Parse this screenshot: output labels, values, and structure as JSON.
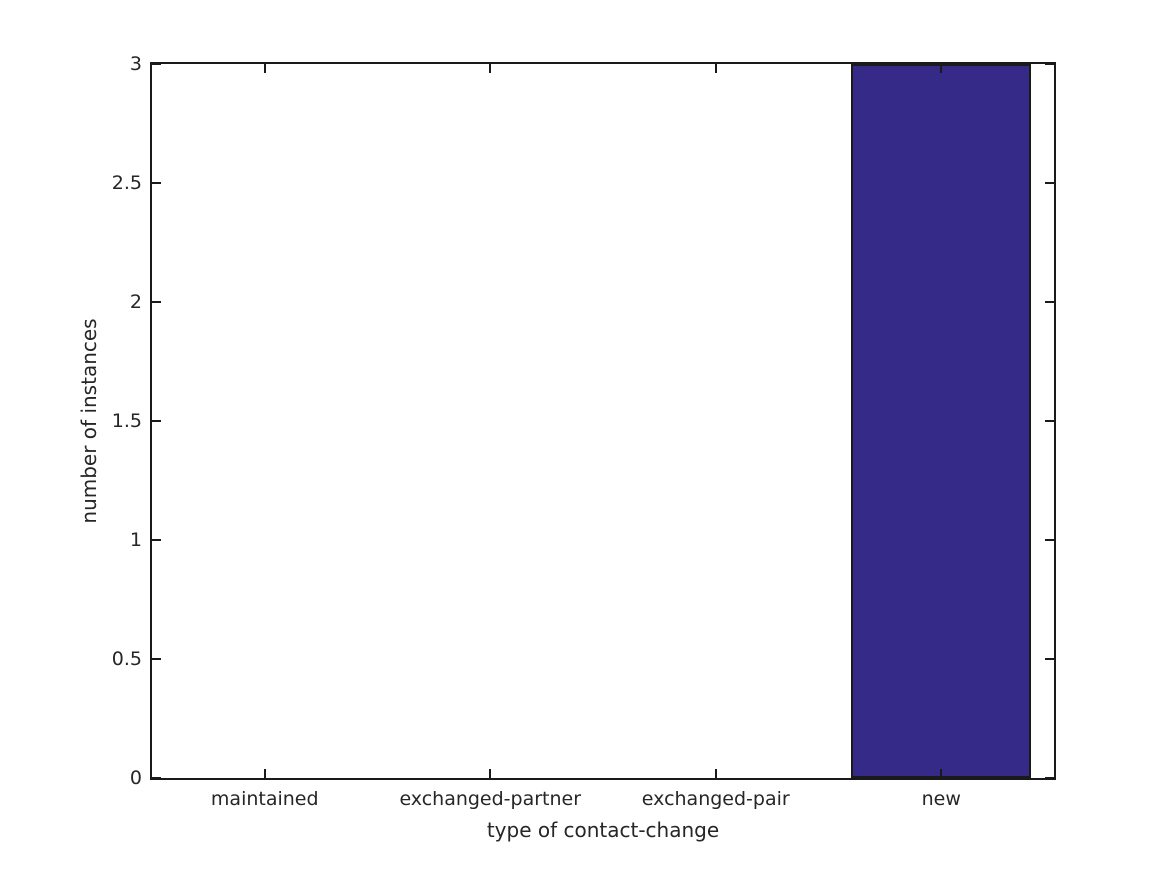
{
  "figure": {
    "background_color": "#ffffff"
  },
  "chart_data": {
    "type": "bar",
    "title": "",
    "xlabel": "type of contact-change",
    "ylabel": "number of instances",
    "categories": [
      "maintained",
      "exchanged-partner",
      "exchanged-pair",
      "new"
    ],
    "values": [
      0,
      0,
      0,
      3
    ],
    "ylim": [
      0,
      3
    ],
    "yticks": [
      0,
      0.5,
      1,
      1.5,
      2,
      2.5,
      3
    ],
    "ytick_labels": [
      "0",
      "0.5",
      "1",
      "1.5",
      "2",
      "2.5",
      "3"
    ],
    "grid": false,
    "legend": null,
    "box": true,
    "tick_direction": "in",
    "bar_color": "#352a87",
    "bar_edge_color": "#1a1a1a",
    "bar_width_fraction": 0.8,
    "axis_color": "#1a1a1a",
    "text_color": "#262626"
  }
}
